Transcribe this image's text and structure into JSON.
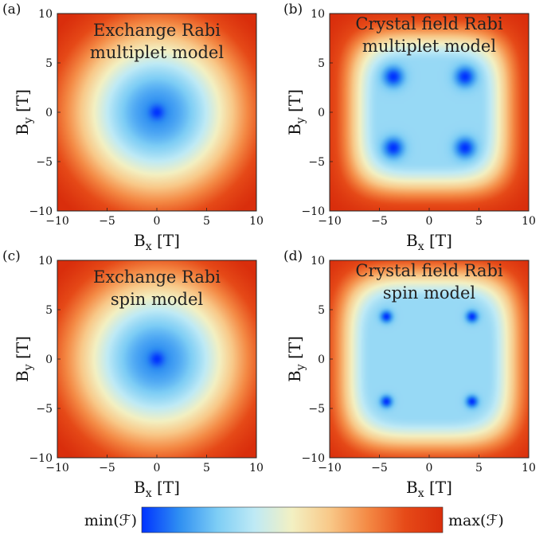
{
  "colorbar": {
    "min_label": "min(ℱ)",
    "max_label": "max(ℱ)",
    "stops": [
      "#0033ff",
      "#2f8ff2",
      "#7dcdf5",
      "#bfeaf5",
      "#f3f0c2",
      "#f8c888",
      "#f48a45",
      "#e64a18",
      "#d92e0c"
    ]
  },
  "chart_data": [
    {
      "type": "heatmap",
      "panel_label": "(a)",
      "title_lines": [
        "Exchange Rabi",
        "multiplet model"
      ],
      "xlabel": "Bx [T]",
      "ylabel": "By [T]",
      "xlim": [
        -10,
        10
      ],
      "ylim": [
        -10,
        10
      ],
      "xticks": [
        -10,
        -5,
        0,
        5,
        10
      ],
      "yticks": [
        -10,
        -5,
        0,
        5,
        10
      ],
      "pattern": "radial",
      "minima": [
        [
          0,
          0
        ]
      ],
      "well_radius": 6.5,
      "spot_radius": 0.5
    },
    {
      "type": "heatmap",
      "panel_label": "(b)",
      "title_lines": [
        "Crystal field Rabi",
        "multiplet model"
      ],
      "xlabel": "Bx [T]",
      "ylabel": "By [T]",
      "xlim": [
        -10,
        10
      ],
      "ylim": [
        -10,
        10
      ],
      "xticks": [
        -10,
        -5,
        0,
        5,
        10
      ],
      "yticks": [
        -10,
        -5,
        0,
        5,
        10
      ],
      "pattern": "square",
      "minima": [
        [
          -3.6,
          3.6
        ],
        [
          3.6,
          3.6
        ],
        [
          -3.6,
          -3.6
        ],
        [
          3.6,
          -3.6
        ]
      ],
      "well_radius": 5.0,
      "spot_radius": 0.75
    },
    {
      "type": "heatmap",
      "panel_label": "(c)",
      "title_lines": [
        "Exchange Rabi",
        "spin model"
      ],
      "xlabel": "Bx [T]",
      "ylabel": "By [T]",
      "xlim": [
        -10,
        10
      ],
      "ylim": [
        -10,
        10
      ],
      "xticks": [
        -10,
        -5,
        0,
        5,
        10
      ],
      "yticks": [
        -10,
        -5,
        0,
        5,
        10
      ],
      "pattern": "radial",
      "minima": [
        [
          0,
          0
        ]
      ],
      "well_radius": 6.5,
      "spot_radius": 0.5
    },
    {
      "type": "heatmap",
      "panel_label": "(d)",
      "title_lines": [
        "Crystal field Rabi",
        "spin model"
      ],
      "xlabel": "Bx [T]",
      "ylabel": "By [T]",
      "xlim": [
        -10,
        10
      ],
      "ylim": [
        -10,
        10
      ],
      "xticks": [
        -10,
        -5,
        0,
        5,
        10
      ],
      "yticks": [
        -10,
        -5,
        0,
        5,
        10
      ],
      "pattern": "square",
      "minima": [
        [
          -4.3,
          4.3
        ],
        [
          4.3,
          4.3
        ],
        [
          -4.3,
          -4.3
        ],
        [
          4.3,
          -4.3
        ]
      ],
      "well_radius": 5.8,
      "spot_radius": 0.45
    }
  ]
}
